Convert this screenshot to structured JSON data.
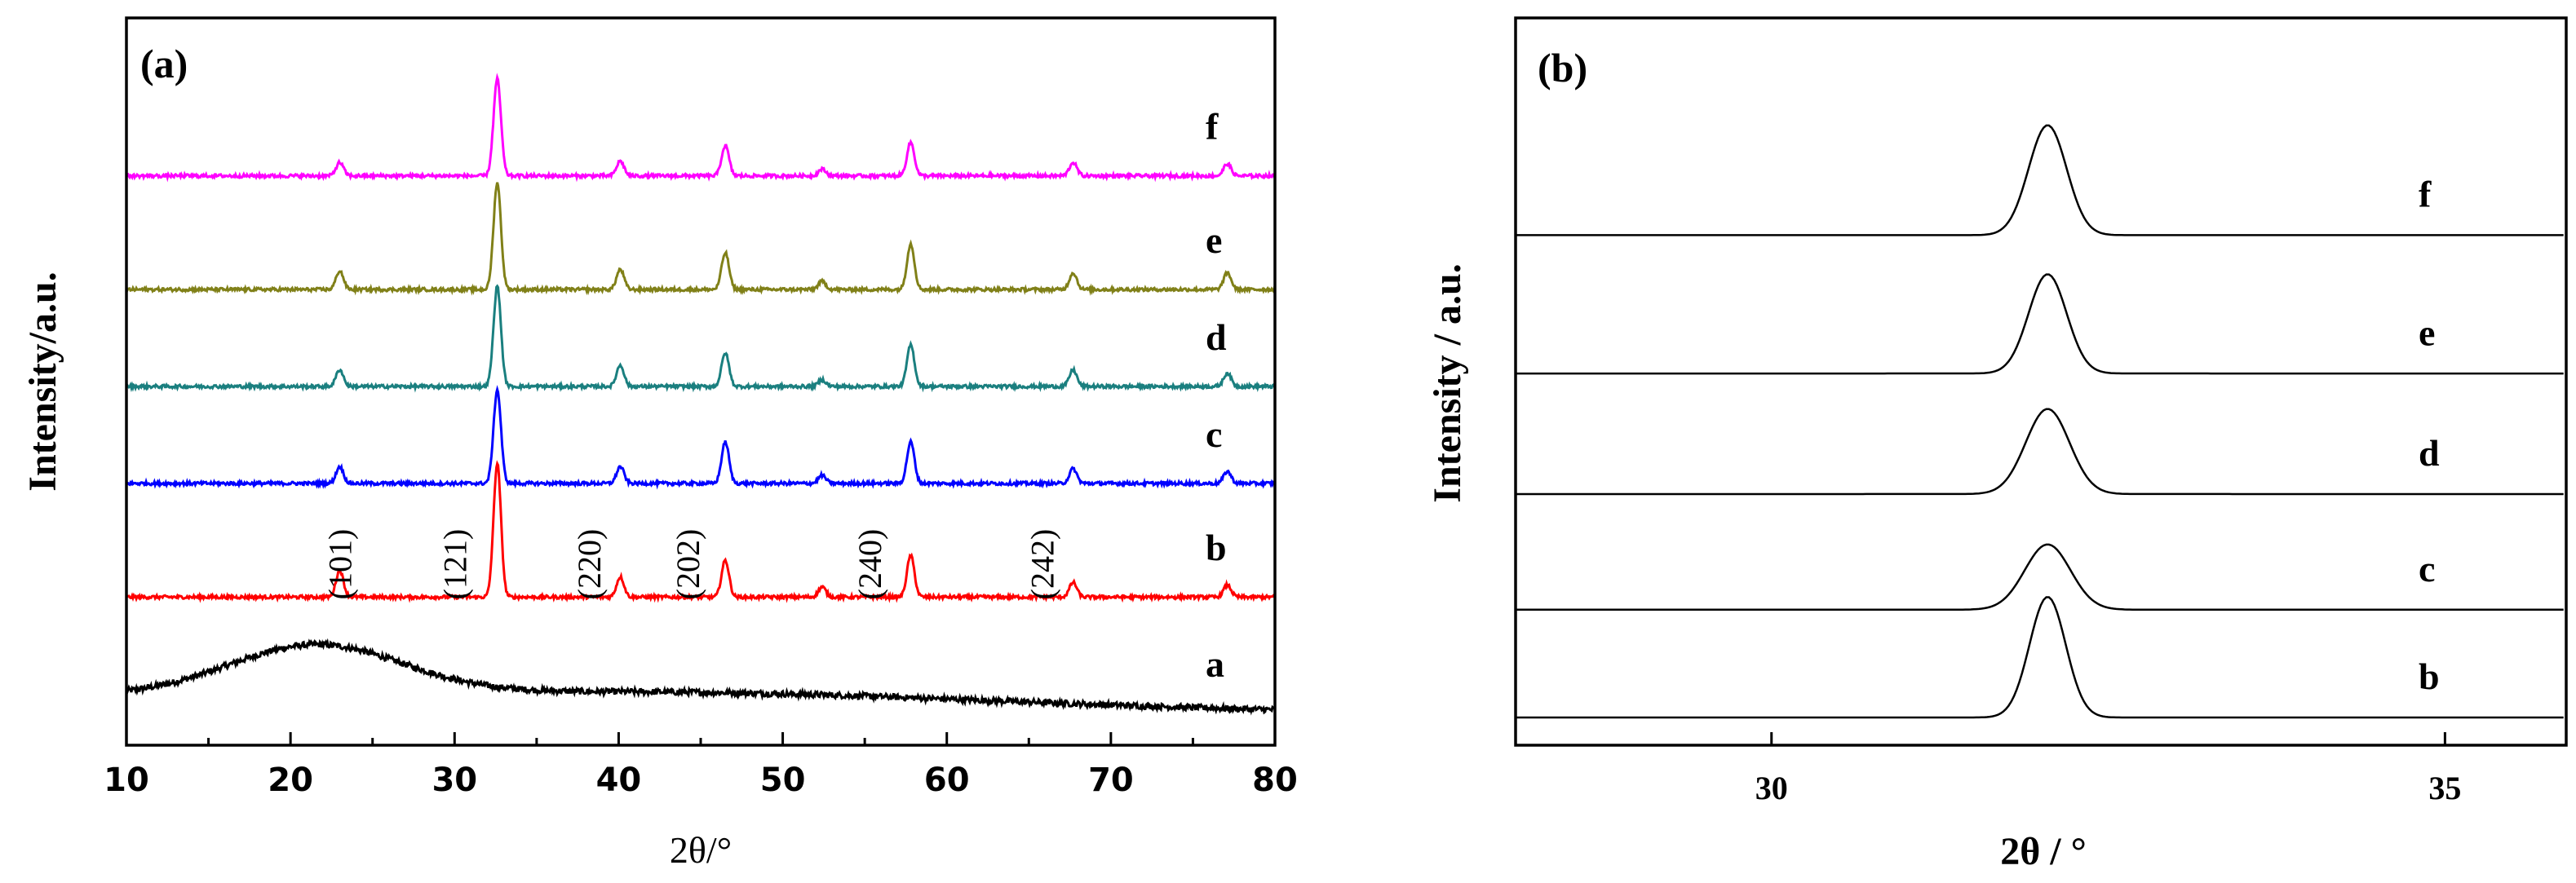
{
  "chart_data": [
    {
      "panel": "(a)",
      "type": "line",
      "xlabel": "2θ/°",
      "ylabel": "Intensity/a.u.",
      "xlim": [
        10,
        80
      ],
      "xticks": [
        "10",
        "20",
        "30",
        "40",
        "50",
        "60",
        "70",
        "80"
      ],
      "yticks_shown": false,
      "peaks_2theta": [
        23.0,
        32.6,
        40.1,
        46.5,
        52.4,
        57.8,
        67.7,
        77.1
      ],
      "miller_indices": [
        {
          "label": "(101)",
          "x": 23.0
        },
        {
          "label": "(121)",
          "x": 30.0
        },
        {
          "label": "(220)",
          "x": 38.2
        },
        {
          "label": "(202)",
          "x": 44.2
        },
        {
          "label": "(240)",
          "x": 55.3
        },
        {
          "label": "(242)",
          "x": 65.8
        }
      ],
      "series": [
        {
          "name": "a",
          "color": "#000000",
          "form": "amorphous",
          "broad_hump_center": 21.5,
          "offset": 0.0,
          "hump_height": 0.75
        },
        {
          "name": "b",
          "color": "#ff0000",
          "form": "crystalline",
          "offset": 1.85,
          "peak_heights": [
            0.4,
            2.0,
            0.3,
            0.55,
            0.15,
            0.62,
            0.22,
            0.18
          ]
        },
        {
          "name": "c",
          "color": "#0000ff",
          "form": "crystalline",
          "offset": 3.55,
          "peak_heights": [
            0.25,
            1.4,
            0.25,
            0.62,
            0.12,
            0.62,
            0.22,
            0.18
          ]
        },
        {
          "name": "d",
          "color": "#1a7f7f",
          "form": "crystalline",
          "offset": 5.0,
          "peak_heights": [
            0.25,
            1.5,
            0.32,
            0.5,
            0.1,
            0.62,
            0.25,
            0.2
          ]
        },
        {
          "name": "e",
          "color": "#808018",
          "form": "crystalline",
          "offset": 6.45,
          "peak_heights": [
            0.28,
            1.6,
            0.3,
            0.55,
            0.12,
            0.68,
            0.25,
            0.25
          ]
        },
        {
          "name": "f",
          "color": "#ff00ff",
          "form": "crystalline",
          "offset": 8.15,
          "peak_heights": [
            0.2,
            1.45,
            0.22,
            0.45,
            0.1,
            0.5,
            0.2,
            0.18
          ]
        }
      ]
    },
    {
      "panel": "(b)",
      "type": "line",
      "xlabel": "2θ / °",
      "ylabel": "Intensity / a.u.",
      "xlim": [
        28.1,
        35.9
      ],
      "xticks": [
        "30",
        "35"
      ],
      "tick_values": [
        30,
        35
      ],
      "yticks_shown": false,
      "series": [
        {
          "name": "b",
          "color": "#000000",
          "peak_center": 32.05,
          "width": 0.19,
          "offset": 0.0,
          "height": 1.7
        },
        {
          "name": "c",
          "color": "#000000",
          "peak_center": 32.05,
          "width": 0.24,
          "offset": 1.52,
          "height": 0.92
        },
        {
          "name": "d",
          "color": "#000000",
          "peak_center": 32.05,
          "width": 0.23,
          "offset": 3.15,
          "height": 1.2
        },
        {
          "name": "e",
          "color": "#000000",
          "peak_center": 32.05,
          "width": 0.2,
          "offset": 4.85,
          "height": 1.4
        },
        {
          "name": "f",
          "color": "#000000",
          "peak_center": 32.05,
          "width": 0.2,
          "offset": 6.8,
          "height": 1.55
        }
      ]
    }
  ]
}
